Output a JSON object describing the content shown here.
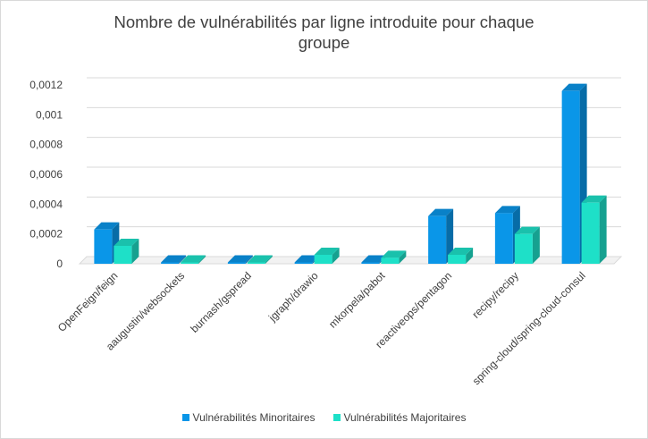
{
  "chart_data": {
    "type": "bar",
    "title_line1": "Nombre de vulnérabilités par ligne introduite pour chaque",
    "title_line2": "groupe",
    "xlabel": "",
    "ylabel": "",
    "categories": [
      "OpenFeign/feign",
      "aaugustin/websockets",
      "burnash/gspread",
      "jgraph/drawio",
      "mkorpela/pabot",
      "reactiveops/pentagon",
      "recipy/recipy",
      "spring-cloud/spring-cloud-consul"
    ],
    "series": [
      {
        "name": "Vulnérabilités Minoritaires",
        "color": "#0a96e8",
        "values": [
          0.00023,
          0.0,
          0.0,
          0.0,
          0.0,
          0.00032,
          0.00034,
          0.00116
        ]
      },
      {
        "name": "Vulnérabilités Majoritaires",
        "color": "#1ee0c8",
        "values": [
          0.00012,
          0.0,
          0.0,
          6e-05,
          4e-05,
          6e-05,
          0.0002,
          0.00041
        ]
      }
    ],
    "y_ticks": [
      "0",
      "0,0002",
      "0,0004",
      "0,0006",
      "0,0008",
      "0,001",
      "0,0012"
    ],
    "y_tick_values": [
      0,
      0.0002,
      0.0004,
      0.0006,
      0.0008,
      0.001,
      0.0012
    ],
    "ylim": [
      0,
      0.0012
    ],
    "grid": true,
    "legend_position": "bottom"
  }
}
